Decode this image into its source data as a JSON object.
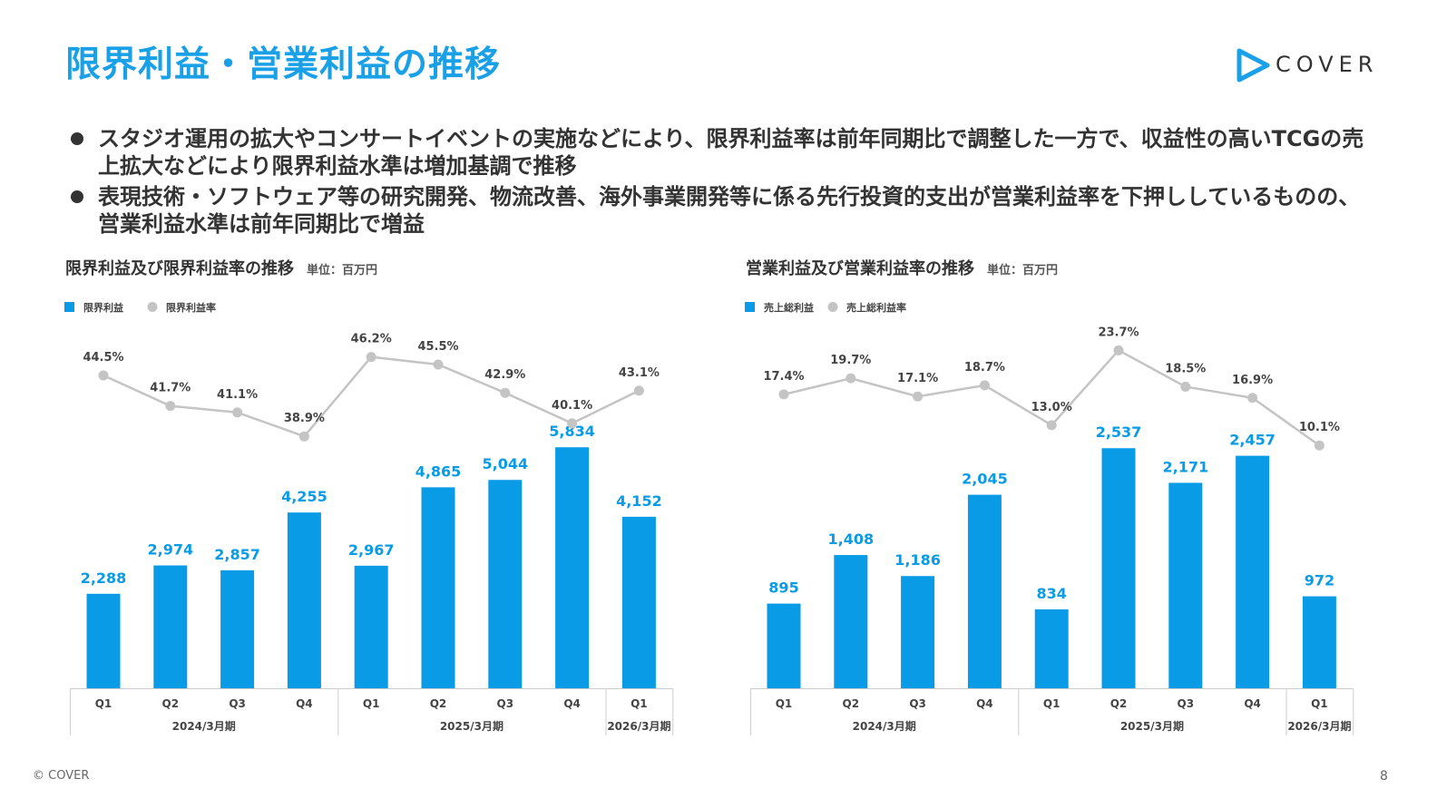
{
  "header": {
    "title": "限界利益・営業利益の推移",
    "logo_text": "COVER",
    "logo_color": "#1aa0e6"
  },
  "bullets": [
    "スタジオ運用の拡大やコンサートイベントの実施などにより、限界利益率は前年同期比で調整した一方で、収益性の高いTCGの売上拡大などにより限界利益水準は増加基調で推移",
    "表現技術・ソフトウェア等の研究開発、物流改善、海外事業開発等に係る先行投資的支出が営業利益率を下押ししているものの、営業利益水準は前年同期比で増益"
  ],
  "chart_data": [
    {
      "type": "bar",
      "title": "限界利益及び限界利益率の推移",
      "unit": "単位：百万円",
      "legend_placement": "top-left",
      "categories": [
        "Q1",
        "Q2",
        "Q3",
        "Q4",
        "Q1",
        "Q2",
        "Q3",
        "Q4",
        "Q1"
      ],
      "groups": [
        {
          "label": "2024/3月期",
          "count": 4
        },
        {
          "label": "2025/3月期",
          "count": 4
        },
        {
          "label": "2026/3月期",
          "count": 1
        }
      ],
      "series": [
        {
          "name": "限界利益",
          "kind": "bar",
          "color": "#0a9be6",
          "values": [
            2288,
            2974,
            2857,
            4255,
            2967,
            4865,
            5044,
            5834,
            4152
          ],
          "labels": [
            "2,288",
            "2,974",
            "2,857",
            "4,255",
            "2,967",
            "4,865",
            "5,044",
            "5,834",
            "4,152"
          ]
        },
        {
          "name": "限界利益率",
          "kind": "line",
          "color": "#c4c4c4",
          "values": [
            44.5,
            41.7,
            41.1,
            38.9,
            46.2,
            45.5,
            42.9,
            40.1,
            43.1
          ],
          "labels": [
            "44.5%",
            "41.7%",
            "41.1%",
            "38.9%",
            "46.2%",
            "45.5%",
            "42.9%",
            "40.1%",
            "43.1%"
          ]
        }
      ],
      "bar_ylim": [
        0,
        6300
      ],
      "line_ylim": [
        38,
        47
      ],
      "grid": false
    },
    {
      "type": "bar",
      "title": "営業利益及び営業利益率の推移",
      "unit": "単位：百万円",
      "legend_placement": "top-left",
      "categories": [
        "Q1",
        "Q2",
        "Q3",
        "Q4",
        "Q1",
        "Q2",
        "Q3",
        "Q4",
        "Q1"
      ],
      "groups": [
        {
          "label": "2024/3月期",
          "count": 4
        },
        {
          "label": "2025/3月期",
          "count": 4
        },
        {
          "label": "2026/3月期",
          "count": 1
        }
      ],
      "series": [
        {
          "name": "売上総利益",
          "kind": "bar",
          "color": "#0a9be6",
          "values": [
            895,
            1408,
            1186,
            2045,
            834,
            2537,
            2171,
            2457,
            972
          ],
          "labels": [
            "895",
            "1,408",
            "1,186",
            "2,045",
            "834",
            "2,537",
            "2,171",
            "2,457",
            "972"
          ]
        },
        {
          "name": "売上総利益率",
          "kind": "line",
          "color": "#c4c4c4",
          "values": [
            17.4,
            19.7,
            17.1,
            18.7,
            13.0,
            23.7,
            18.5,
            16.9,
            10.1
          ],
          "labels": [
            "17.4%",
            "19.7%",
            "17.1%",
            "18.7%",
            "13.0%",
            "23.7%",
            "18.5%",
            "16.9%",
            "10.1%"
          ]
        }
      ],
      "bar_ylim": [
        0,
        2750
      ],
      "line_ylim": [
        10,
        24
      ],
      "grid": false
    }
  ],
  "footer": {
    "copyright": "© COVER",
    "page_number": "8"
  }
}
